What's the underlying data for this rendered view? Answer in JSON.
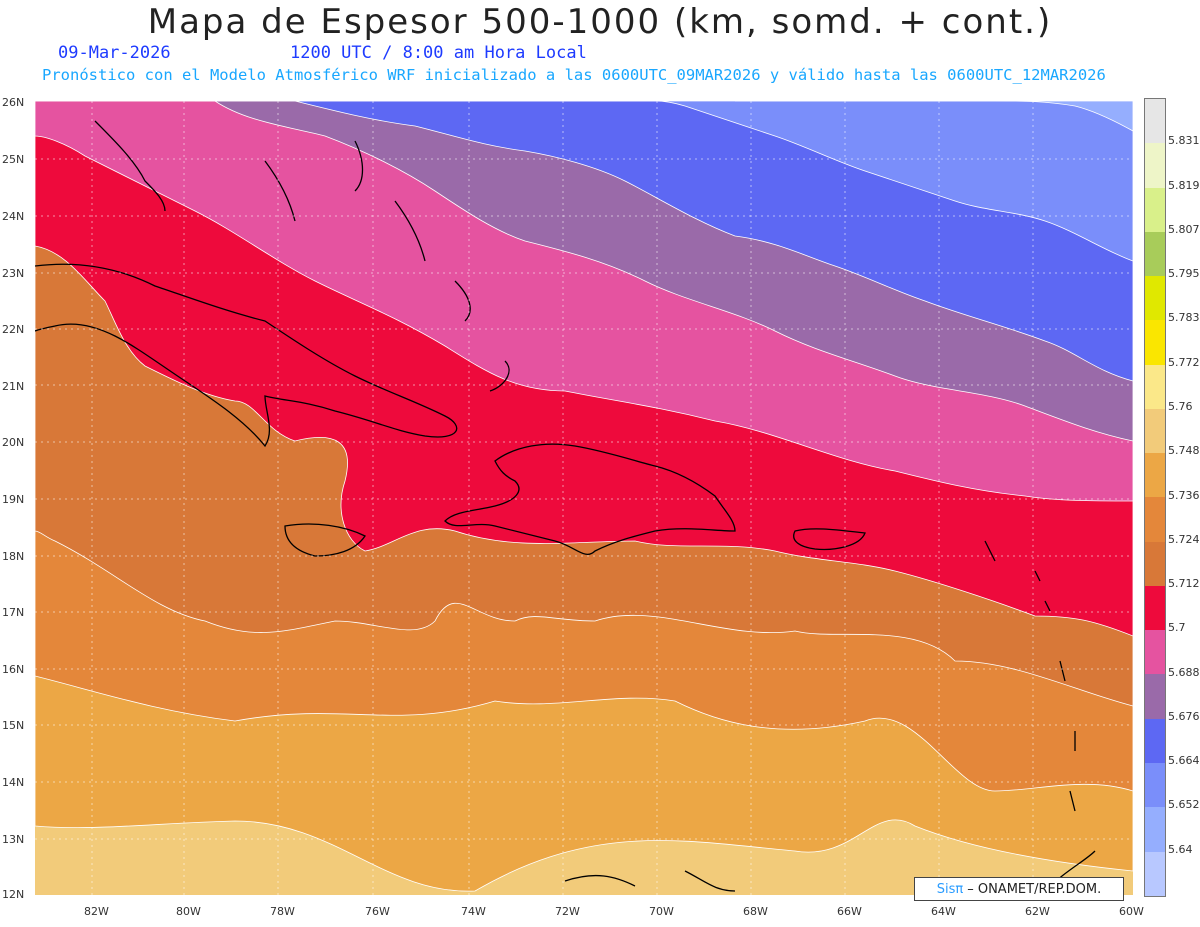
{
  "header": {
    "title": "Mapa de Espesor 500-1000 (km, somd. + cont.)",
    "date": "09-Mar-2026",
    "time": "1200 UTC / 8:00 am Hora Local",
    "forecast": "Pronóstico con el Modelo Atmosférico WRF inicializado a las 0600UTC_09MAR2026 y válido hasta las  0600UTC_12MAR2026"
  },
  "axes": {
    "latitudes": [
      "26N",
      "25N",
      "24N",
      "23N",
      "22N",
      "21N",
      "20N",
      "19N",
      "18N",
      "17N",
      "16N",
      "15N",
      "14N",
      "13N",
      "12N"
    ],
    "longitudes": [
      "82W",
      "80W",
      "78W",
      "76W",
      "74W",
      "72W",
      "70W",
      "68W",
      "66W",
      "64W",
      "62W",
      "60W"
    ]
  },
  "legend": {
    "levels": [
      "5.831",
      "5.819",
      "5.807",
      "5.795",
      "5.783",
      "5.772",
      "5.76",
      "5.748",
      "5.736",
      "5.724",
      "5.712",
      "5.7",
      "5.688",
      "5.676",
      "5.664",
      "5.652",
      "5.64"
    ],
    "colors": [
      "#e6e6e6",
      "#eef5c8",
      "#d9f08a",
      "#a8cc5a",
      "#e0e800",
      "#fae600",
      "#fbe889",
      "#f2cb7a",
      "#eca745",
      "#e4873a",
      "#d87838",
      "#ee0a3c",
      "#e553a0",
      "#9a6aa9",
      "#5d68f3",
      "#7a8efa",
      "#95aefe",
      "#b8c8ff"
    ]
  },
  "credit": {
    "sis": "Sisπ",
    "text": "– ONAMET/REP.DOM."
  }
}
